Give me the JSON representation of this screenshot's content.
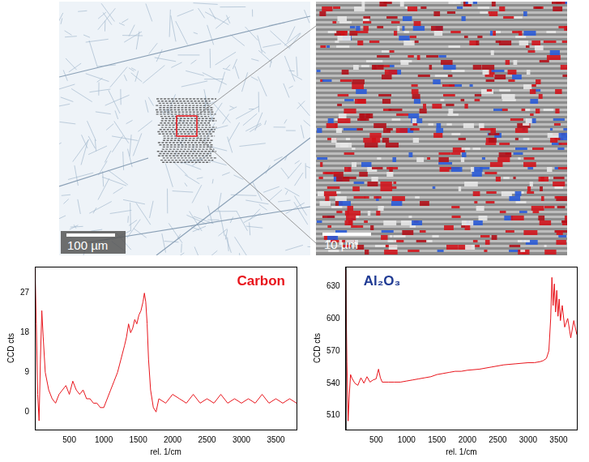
{
  "images": [
    {
      "scale_bar": "100 µm"
    },
    {
      "scale_bar": "10 µm"
    }
  ],
  "chart_data": [
    {
      "type": "line",
      "title": "Carbon",
      "x_label": "rel. 1/cm",
      "y_label": "CCD cts",
      "x": [
        0,
        20,
        40,
        60,
        80,
        100,
        120,
        150,
        200,
        250,
        300,
        350,
        400,
        450,
        500,
        550,
        600,
        650,
        700,
        750,
        800,
        850,
        900,
        950,
        1000,
        1050,
        1100,
        1150,
        1200,
        1250,
        1300,
        1330,
        1360,
        1390,
        1420,
        1450,
        1480,
        1510,
        1540,
        1570,
        1590,
        1610,
        1630,
        1650,
        1680,
        1720,
        1760,
        1800,
        1900,
        2000,
        2100,
        2200,
        2300,
        2400,
        2500,
        2600,
        2700,
        2800,
        2900,
        3000,
        3100,
        3200,
        3300,
        3400,
        3500,
        3600,
        3700,
        3800
      ],
      "series": [
        {
          "color": "#e8141b",
          "values": [
            33,
            20,
            4,
            -2,
            12,
            23,
            17,
            9,
            5,
            3,
            2,
            4,
            5,
            6,
            4,
            7,
            5,
            4,
            5,
            3,
            3,
            2,
            2,
            1,
            1,
            3,
            5,
            7,
            9,
            12,
            15,
            17,
            20,
            18,
            19,
            21,
            20,
            22,
            23,
            25,
            27,
            25,
            20,
            12,
            5,
            1,
            0,
            3,
            2,
            4,
            3,
            2,
            4,
            2,
            3,
            2,
            4,
            2,
            3,
            2,
            3,
            2,
            4,
            2,
            3,
            2,
            3,
            2
          ]
        }
      ],
      "xlim": [
        0,
        3800
      ],
      "xticks": [
        500,
        1000,
        1500,
        2000,
        2500,
        3000,
        3500
      ],
      "ylim": [
        -4,
        33
      ],
      "yticks": [
        0,
        9,
        18,
        27
      ],
      "grid": false
    },
    {
      "type": "line",
      "title": "Al₂O₃",
      "x_label": "rel. 1/cm",
      "y_label": "CCD cts",
      "x": [
        0,
        20,
        40,
        60,
        80,
        100,
        150,
        200,
        250,
        300,
        350,
        400,
        450,
        500,
        540,
        570,
        600,
        700,
        800,
        900,
        1000,
        1100,
        1200,
        1300,
        1400,
        1500,
        1600,
        1700,
        1800,
        1900,
        2000,
        2200,
        2400,
        2600,
        2800,
        3000,
        3100,
        3200,
        3250,
        3300,
        3340,
        3370,
        3390,
        3410,
        3430,
        3450,
        3470,
        3490,
        3510,
        3530,
        3560,
        3600,
        3650,
        3700,
        3750,
        3800
      ],
      "series": [
        {
          "color": "#e8141b",
          "values": [
            645,
            560,
            505,
            530,
            548,
            545,
            540,
            538,
            545,
            540,
            546,
            541,
            543,
            544,
            553,
            545,
            541,
            541,
            541,
            541,
            542,
            543,
            544,
            545,
            546,
            548,
            549,
            550,
            551,
            551,
            552,
            553,
            555,
            557,
            558,
            559,
            559,
            560,
            561,
            563,
            570,
            600,
            638,
            612,
            632,
            606,
            626,
            602,
            618,
            598,
            612,
            592,
            600,
            582,
            598,
            585
          ]
        }
      ],
      "xlim": [
        0,
        3800
      ],
      "xticks": [
        500,
        1000,
        1500,
        2000,
        2500,
        3000,
        3500
      ],
      "ylim": [
        497,
        648
      ],
      "yticks": [
        510,
        540,
        570,
        600,
        630
      ],
      "grid": false
    }
  ]
}
